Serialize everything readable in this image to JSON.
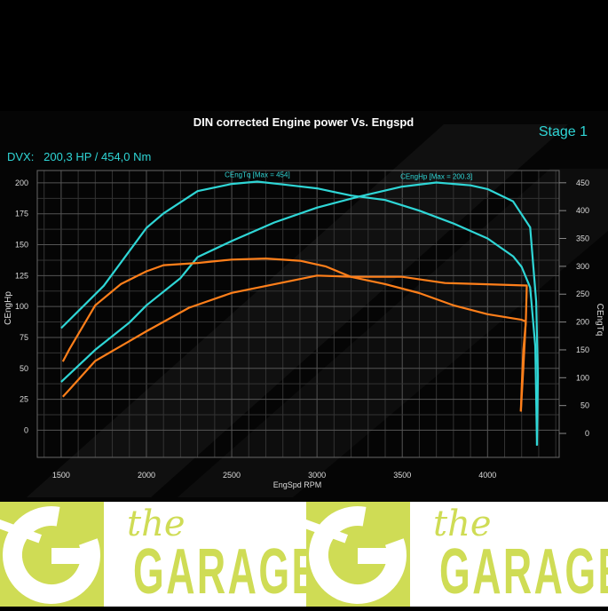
{
  "header": {
    "stage": "Stage 1",
    "summary": "DVX:   200,3 HP / 454,0 Nm"
  },
  "logo": {
    "the": "the",
    "garage": "GARAGE",
    "color": "#cfdc55"
  },
  "chart_data": {
    "type": "line",
    "title": "DIN corrected Engine power Vs. Engspd",
    "xlabel": "EngSpd RPM",
    "ylabel": "CEngHp",
    "y2label": "CEngTq",
    "xlim": [
      1360,
      4420
    ],
    "ylim": [
      -22,
      210
    ],
    "y2lim": [
      -43,
      472
    ],
    "xticks": [
      1500,
      2000,
      2500,
      3000,
      3500,
      4000
    ],
    "yticks": [
      0,
      25,
      50,
      75,
      100,
      125,
      150,
      175,
      200
    ],
    "y2ticks": [
      0,
      50,
      100,
      150,
      200,
      250,
      300,
      350,
      400,
      450
    ],
    "grid": true,
    "annotations": [
      {
        "text": "CEngTq [Max = 454]",
        "x": 2650,
        "axis": "y2",
        "y": 454
      },
      {
        "text": "CEngHp [Max = 200.3]",
        "x": 3700,
        "axis": "y",
        "y": 200.3
      }
    ],
    "series": [
      {
        "key": "tuned_tq",
        "axis": "y2",
        "color": "#2fd6d6",
        "x": [
          1500,
          1750,
          2000,
          2100,
          2300,
          2500,
          2650,
          2800,
          3000,
          3200,
          3400,
          3600,
          3800,
          4000,
          4150,
          4200,
          4250,
          4280,
          4290
        ],
        "y": [
          189,
          265,
          369,
          395,
          435,
          448,
          452,
          447,
          440,
          427,
          419,
          400,
          377,
          350,
          318,
          299,
          262,
          156,
          -22
        ]
      },
      {
        "key": "tuned_hp",
        "axis": "y",
        "color": "#2fd6d6",
        "x": [
          1500,
          1700,
          1900,
          2000,
          2200,
          2300,
          2500,
          2750,
          3000,
          3250,
          3500,
          3700,
          3900,
          4000,
          4150,
          4250,
          4285,
          4295,
          4290
        ],
        "y": [
          39,
          65,
          87,
          101,
          123,
          140,
          153,
          168,
          180,
          189,
          197,
          200.3,
          198,
          195,
          185,
          164,
          104,
          44,
          -12
        ]
      },
      {
        "key": "stock_tq",
        "axis": "y2",
        "color": "#ff7f1a",
        "x": [
          1510,
          1550,
          1700,
          1850,
          2000,
          2100,
          2300,
          2500,
          2700,
          2900,
          3050,
          3200,
          3400,
          3600,
          3800,
          4000,
          4200,
          4225,
          4210,
          4200,
          4195
        ],
        "y": [
          129,
          152,
          230,
          268,
          291,
          302,
          306,
          312,
          314,
          310,
          300,
          281,
          268,
          252,
          230,
          214,
          204,
          201,
          150,
          80,
          40
        ]
      },
      {
        "key": "stock_hp",
        "axis": "y",
        "color": "#ff7f1a",
        "x": [
          1510,
          1550,
          1700,
          1850,
          2000,
          2250,
          2500,
          2750,
          3000,
          3200,
          3500,
          3750,
          4000,
          4230,
          4225,
          4210,
          4195
        ],
        "y": [
          27,
          33,
          56,
          68,
          80,
          99,
          111,
          118,
          125,
          124,
          124,
          119,
          118,
          117,
          90,
          50,
          15
        ]
      }
    ]
  }
}
